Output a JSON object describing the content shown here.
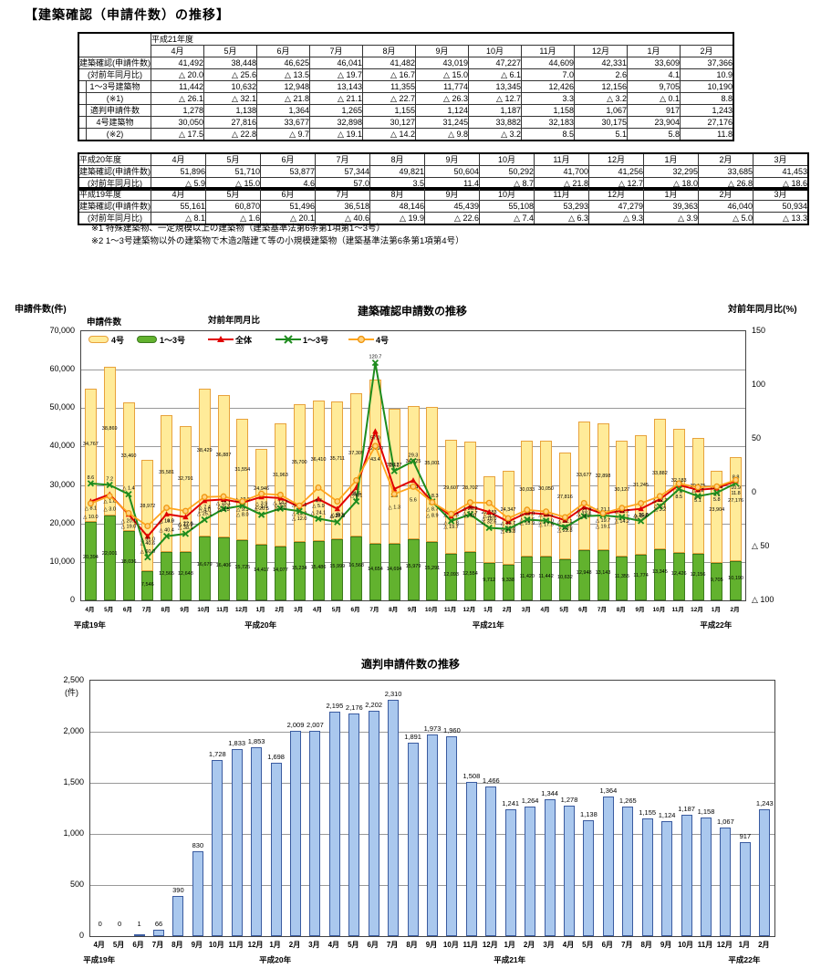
{
  "page": {
    "title": "【建築確認（申請件数）の推移】"
  },
  "notes": [
    "※1 特殊建築物、一定規模以上の建築物（建築基準法第6条第1項第1～3号）",
    "※2 1～3号建築物以外の建築物で木造2階建て等の小規模建築物（建築基準法第6条第1項第4号）"
  ],
  "table_h21": {
    "year_label": "平成21年度",
    "months": [
      "4月",
      "5月",
      "6月",
      "7月",
      "8月",
      "9月",
      "10月",
      "11月",
      "12月",
      "1月",
      "2月"
    ],
    "rows": [
      {
        "label": "建築確認(申請件数)",
        "values": [
          "41,492",
          "38,448",
          "46,625",
          "46,041",
          "41,482",
          "43,019",
          "47,227",
          "44,609",
          "42,331",
          "33,609",
          "37,366"
        ]
      },
      {
        "label": "(対前年同月比)",
        "values": [
          "△ 20.0",
          "△ 25.6",
          "△ 13.5",
          "△ 19.7",
          "△ 16.7",
          "△ 15.0",
          "△ 6.1",
          "7.0",
          "2.6",
          "4.1",
          "10.9"
        ]
      },
      {
        "label": "1～3号建築物",
        "values": [
          "11,442",
          "10,632",
          "12,948",
          "13,143",
          "11,355",
          "11,774",
          "13,345",
          "12,426",
          "12,156",
          "9,705",
          "10,190"
        ]
      },
      {
        "label": "(※1)",
        "values": [
          "△ 26.1",
          "△ 32.1",
          "△ 21.8",
          "△ 21.1",
          "△ 22.7",
          "△ 26.3",
          "△ 12.7",
          "3.3",
          "△ 3.2",
          "△ 0.1",
          "8.8"
        ]
      },
      {
        "label": "適判申請件数",
        "values": [
          "1,278",
          "1,138",
          "1,364",
          "1,265",
          "1,155",
          "1,124",
          "1,187",
          "1,158",
          "1,067",
          "917",
          "1,243"
        ]
      },
      {
        "label": "4号建築物",
        "values": [
          "30,050",
          "27,816",
          "33,677",
          "32,898",
          "30,127",
          "31,245",
          "33,882",
          "32,183",
          "30,175",
          "23,904",
          "27,176"
        ]
      },
      {
        "label": "(※2)",
        "values": [
          "△ 17.5",
          "△ 22.8",
          "△ 9.7",
          "△ 19.1",
          "△ 14.2",
          "△ 9.8",
          "△ 3.2",
          "8.5",
          "5.1",
          "5.8",
          "11.8"
        ]
      }
    ]
  },
  "table_h20": {
    "year_label": "平成20年度",
    "months": [
      "4月",
      "5月",
      "6月",
      "7月",
      "8月",
      "9月",
      "10月",
      "11月",
      "12月",
      "1月",
      "2月",
      "3月"
    ],
    "rows": [
      {
        "label": "建築確認(申請件数)",
        "values": [
          "51,896",
          "51,710",
          "53,877",
          "57,344",
          "49,821",
          "50,604",
          "50,292",
          "41,700",
          "41,256",
          "32,295",
          "33,685",
          "41,453"
        ]
      },
      {
        "label": "(対前年同月比)",
        "values": [
          "△ 5.9",
          "△ 15.0",
          "4.6",
          "57.0",
          "3.5",
          "11.4",
          "△ 8.7",
          "△ 21.8",
          "△ 12.7",
          "△ 18.0",
          "△ 26.8",
          "△ 18.6"
        ]
      }
    ]
  },
  "table_h19": {
    "year_label": "平成19年度",
    "months": [
      "4月",
      "5月",
      "6月",
      "7月",
      "8月",
      "9月",
      "10月",
      "11月",
      "12月",
      "1月",
      "2月",
      "3月"
    ],
    "rows": [
      {
        "label": "建築確認(申請件数)",
        "values": [
          "55,161",
          "60,870",
          "51,496",
          "36,518",
          "48,146",
          "45,439",
          "55,108",
          "53,293",
          "47,279",
          "39,363",
          "46,040",
          "50,934"
        ]
      },
      {
        "label": "(対前年同月比)",
        "values": [
          "△ 8.1",
          "△ 1.6",
          "△ 20.1",
          "△ 40.6",
          "△ 19.9",
          "△ 22.6",
          "△ 7.4",
          "△ 6.3",
          "△ 9.3",
          "△ 3.9",
          "△ 5.0",
          "△ 13.3"
        ]
      }
    ]
  },
  "chart_data": [
    {
      "type": "bar+line",
      "title": "建築確認申請数の推移",
      "left_axis_label": "申請件数(件)",
      "right_axis_label": "対前年同月比(%)",
      "legend": {
        "bars_title": "申請件数",
        "lines_title": "対前年同月比"
      },
      "left_ticks": [
        "70,000",
        "60,000",
        "50,000",
        "40,000",
        "30,000",
        "20,000",
        "10,000",
        "0"
      ],
      "right_ticks": [
        "150",
        "100",
        "50",
        "0",
        "△ 50",
        "△ 100"
      ],
      "ylim_left": [
        0,
        70000
      ],
      "ylim_right": [
        -100,
        150
      ],
      "months": [
        "4月",
        "5月",
        "6月",
        "7月",
        "8月",
        "9月",
        "10月",
        "11月",
        "12月",
        "1月",
        "2月",
        "3月",
        "4月",
        "5月",
        "6月",
        "7月",
        "8月",
        "9月",
        "10月",
        "11月",
        "12月",
        "1月",
        "2月",
        "3月",
        "4月",
        "5月",
        "6月",
        "7月",
        "8月",
        "9月",
        "10月",
        "11月",
        "12月",
        "1月",
        "2月"
      ],
      "era_labels": [
        {
          "label": "平成19年",
          "month_index": 0
        },
        {
          "label": "平成20年",
          "month_index": 9
        },
        {
          "label": "平成21年",
          "month_index": 21
        },
        {
          "label": "平成22年",
          "month_index": 33
        }
      ],
      "series": [
        {
          "name": "4号",
          "type": "bar",
          "color": "#FFEB99",
          "border": "#E8A23C",
          "values": [
            34767,
            38869,
            33460,
            28972,
            35581,
            32791,
            38429,
            36887,
            31554,
            24946,
            31963,
            35700,
            36410,
            35711,
            37309,
            42690,
            35127,
            34625,
            35001,
            29607,
            28702,
            22583,
            24347,
            30033,
            30050,
            27816,
            33677,
            32898,
            30127,
            31245,
            33882,
            32183,
            30175,
            23904,
            27176
          ]
        },
        {
          "name": "1～3号",
          "type": "bar",
          "color": "#62B22E",
          "border": "#3C7A1E",
          "values": [
            20394,
            22001,
            18036,
            7546,
            12565,
            12648,
            16679,
            16406,
            15725,
            14417,
            14077,
            15234,
            15486,
            15999,
            16568,
            14654,
            14694,
            15979,
            15291,
            12093,
            12554,
            9712,
            9338,
            11420,
            11442,
            10632,
            12948,
            13143,
            11355,
            11774,
            13345,
            12426,
            12156,
            9705,
            10190
          ]
        },
        {
          "name": "全体",
          "type": "line",
          "color": "#E00000",
          "marker": "triangle",
          "values": [
            -8.1,
            -1.6,
            -20.1,
            -40.6,
            -19.9,
            -22.6,
            -7.4,
            -6.3,
            -9.3,
            -3.9,
            -5.0,
            -13.3,
            -5.9,
            -15.0,
            4.6,
            57.0,
            3.5,
            11.4,
            -8.7,
            -21.8,
            -12.7,
            -18.0,
            -26.8,
            -18.6,
            -20.0,
            -25.6,
            -13.5,
            -19.7,
            -16.7,
            -15.0,
            -6.1,
            7.0,
            2.6,
            4.1,
            10.9
          ]
        },
        {
          "name": "1～3号",
          "type": "line",
          "color": "#1E8C1E",
          "marker": "x",
          "values": [
            8.6,
            7.2,
            -1.4,
            -60.0,
            -40.4,
            -38.1,
            -25.1,
            -15.1,
            -12.0,
            -20.5,
            -14.7,
            -17.1,
            -24.1,
            -27.3,
            -8.1,
            120.7,
            20.1,
            29.3,
            -8.3,
            -26.3,
            -20.2,
            -32.6,
            -33.7,
            -25.0,
            -26.1,
            -32.1,
            -21.8,
            -21.1,
            -22.7,
            -26.3,
            -12.7,
            3.3,
            -3.2,
            -0.1,
            8.8
          ]
        },
        {
          "name": "4号",
          "type": "line",
          "color": "#FFA51E",
          "marker": "circle",
          "values": [
            -10.0,
            -3.0,
            -19.0,
            -31.0,
            -14.0,
            -17.0,
            -4.0,
            -3.5,
            -8.0,
            -1.0,
            -2.0,
            -12.0,
            4.7,
            -8.1,
            11.5,
            43.4,
            -1.3,
            5.6,
            -8.9,
            -19.7,
            -9.0,
            -9.5,
            -23.8,
            -15.9,
            -17.5,
            -22.8,
            -9.7,
            -19.1,
            -14.2,
            -9.8,
            -3.2,
            8.5,
            5.1,
            5.8,
            11.8
          ]
        }
      ]
    },
    {
      "type": "bar",
      "title": "適判申請件数の推移",
      "unit_label": "(件)",
      "yticks": [
        "2,500",
        "2,000",
        "1,500",
        "1,000",
        "500",
        "0"
      ],
      "ylim": [
        0,
        2500
      ],
      "bar_color": "#AAC8EE",
      "bar_border": "#3A5BA0",
      "months": [
        "4月",
        "5月",
        "6月",
        "7月",
        "8月",
        "9月",
        "10月",
        "11月",
        "12月",
        "1月",
        "2月",
        "3月",
        "4月",
        "5月",
        "6月",
        "7月",
        "8月",
        "9月",
        "10月",
        "11月",
        "12月",
        "1月",
        "2月",
        "3月",
        "4月",
        "5月",
        "6月",
        "7月",
        "8月",
        "9月",
        "10月",
        "11月",
        "12月",
        "1月",
        "2月"
      ],
      "era_labels": [
        {
          "label": "平成19年",
          "month_index": 0
        },
        {
          "label": "平成20年",
          "month_index": 9
        },
        {
          "label": "平成21年",
          "month_index": 21
        },
        {
          "label": "平成22年",
          "month_index": 33
        }
      ],
      "values": [
        0,
        0,
        1,
        66,
        390,
        830,
        1728,
        1833,
        1853,
        1698,
        2009,
        2007,
        2195,
        2176,
        2202,
        2310,
        1891,
        1973,
        1960,
        1508,
        1466,
        1241,
        1264,
        1344,
        1278,
        1138,
        1364,
        1265,
        1155,
        1124,
        1187,
        1158,
        1067,
        917,
        1243
      ]
    }
  ]
}
